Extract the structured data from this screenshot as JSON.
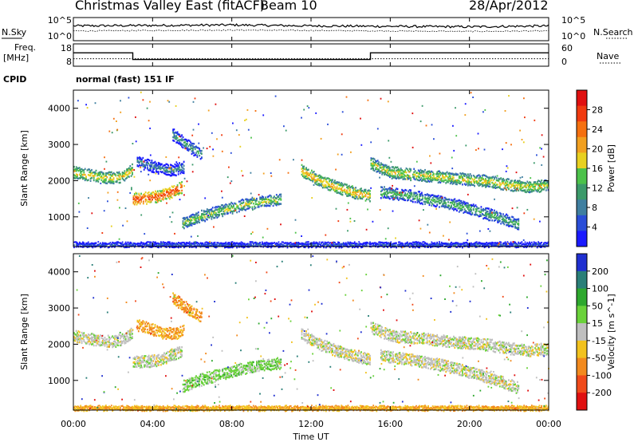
{
  "header": {
    "title": "Christmas Valley East (fitACF)",
    "beam": "Beam 10",
    "date": "28/Apr/2012"
  },
  "noise_panel": {
    "left_label": "N.Sky",
    "right_label": "N.Search",
    "left_ticks": [
      "10^5",
      "10^0"
    ],
    "right_ticks": [
      "10^5",
      "10^0"
    ]
  },
  "freq_panel": {
    "left_label_line1": "Freq.",
    "left_label_line2": "[MHz]",
    "right_label": "Nave",
    "left_ticks": [
      "18",
      "8"
    ],
    "right_ticks": [
      "60",
      "0"
    ],
    "freq_mhz": [
      {
        "t_start": 0,
        "t_end": 3,
        "value": 14
      },
      {
        "t_start": 3,
        "t_end": 15,
        "value": 11
      },
      {
        "t_start": 15,
        "t_end": 24,
        "value": 14
      }
    ]
  },
  "cpid_panel": {
    "label": "CPID",
    "mode": "normal (fast) 151 IF"
  },
  "power_panel": {
    "ylabel": "Slant Range [km]",
    "y_ticks": [
      "1000",
      "2000",
      "3000",
      "4000"
    ],
    "colorbar_label": "Power [dB]",
    "colorbar_ticks": [
      "4",
      "8",
      "12",
      "16",
      "20",
      "24",
      "28"
    ],
    "colors": [
      "#1a1aff",
      "#2a4ed8",
      "#3f7fa0",
      "#3c9a6a",
      "#4cc24a",
      "#e8d020",
      "#f2a020",
      "#f57010",
      "#f03a10",
      "#e01010"
    ]
  },
  "velocity_panel": {
    "ylabel": "Slant Range [km]",
    "y_ticks": [
      "1000",
      "2000",
      "3000",
      "4000"
    ],
    "colorbar_label": "Velocity [m s^-1]",
    "colorbar_ticks": [
      "200",
      "100",
      "50",
      "15",
      "-15",
      "-50",
      "-100",
      "-200"
    ],
    "colors": [
      "#1f2fd0",
      "#2a7f78",
      "#2ea82e",
      "#6ad23a",
      "#bfbfbf",
      "#f2c21e",
      "#f28a1e",
      "#f04a1a",
      "#e01010"
    ]
  },
  "x_axis": {
    "label": "Time UT",
    "ticks": [
      "00:00",
      "04:00",
      "08:00",
      "12:00",
      "16:00",
      "20:00",
      "00:00"
    ]
  },
  "chart_data": [
    {
      "type": "line",
      "title": "",
      "series": [
        {
          "name": "N.Sky",
          "x": [
            0,
            4,
            8,
            12,
            16,
            20,
            24
          ],
          "values": [
            3.2,
            3.3,
            3.4,
            3.2,
            3.1,
            3.0,
            3.2
          ]
        },
        {
          "name": "N.Search",
          "x": [
            0,
            4,
            8,
            12,
            16,
            20,
            24
          ],
          "values": [
            2.1,
            2.2,
            2.3,
            2.2,
            2.1,
            2.0,
            2.1
          ]
        }
      ],
      "xlim": [
        0,
        24
      ],
      "ylim": [
        0,
        5
      ]
    },
    {
      "type": "line",
      "title": "",
      "series": [
        {
          "name": "Freq. [MHz]",
          "x": [
            0,
            3,
            3,
            15,
            15,
            24
          ],
          "values": [
            14,
            14,
            11,
            11,
            14,
            14
          ]
        }
      ],
      "xlim": [
        0,
        24
      ],
      "ylim": [
        8,
        18
      ]
    },
    {
      "type": "heatmap",
      "title": "",
      "xlabel": "Time UT",
      "ylabel": "Slant Range [km]",
      "xlim": [
        0,
        24
      ],
      "ylim": [
        180,
        4500
      ],
      "value_label": "Power [dB]",
      "value_range": [
        0,
        30
      ],
      "bands": [
        {
          "t": [
            0.0,
            0.5,
            1.0,
            1.5,
            2.0,
            2.5,
            3.0
          ],
          "r": [
            2250,
            2200,
            2150,
            2100,
            2100,
            2150,
            2350
          ],
          "val": 19
        },
        {
          "t": [
            3.0,
            3.5,
            4.0,
            4.5,
            5.0,
            5.5
          ],
          "r": [
            1520,
            1540,
            1560,
            1620,
            1720,
            1850
          ],
          "val": 26
        },
        {
          "t": [
            3.2,
            3.8,
            4.4,
            5.0,
            5.6
          ],
          "r": [
            2550,
            2450,
            2350,
            2300,
            2400
          ],
          "val": 10
        },
        {
          "t": [
            5.0,
            5.5,
            6.0,
            6.5
          ],
          "r": [
            3300,
            3100,
            2900,
            2750
          ],
          "val": 12
        },
        {
          "t": [
            5.5,
            6.5,
            7.5,
            8.5,
            9.5,
            10.5
          ],
          "r": [
            850,
            1050,
            1200,
            1350,
            1450,
            1500
          ],
          "val": 16
        },
        {
          "t": [
            11.5,
            12.5,
            13.5,
            14.5,
            15.0
          ],
          "r": [
            2300,
            2000,
            1800,
            1650,
            1600
          ],
          "val": 20
        },
        {
          "t": [
            15.0,
            16.0,
            17.0,
            18.0,
            19.0,
            20.0,
            21.0,
            22.0,
            23.0,
            24.0
          ],
          "r": [
            2500,
            2250,
            2200,
            2150,
            2100,
            2050,
            2000,
            1900,
            1850,
            1900
          ],
          "val": 18
        },
        {
          "t": [
            15.5,
            17.0,
            18.5,
            20.0,
            21.5,
            22.5
          ],
          "r": [
            1700,
            1600,
            1450,
            1250,
            1000,
            800
          ],
          "val": 14
        },
        {
          "t": [
            0.0,
            6.0,
            12.0,
            18.0,
            24.0
          ],
          "r": [
            250,
            250,
            250,
            250,
            250
          ],
          "val": 8
        }
      ]
    },
    {
      "type": "heatmap",
      "title": "",
      "xlabel": "Time UT",
      "ylabel": "Slant Range [km]",
      "xlim": [
        0,
        24
      ],
      "ylim": [
        180,
        4500
      ],
      "value_label": "Velocity [m s^-1]",
      "value_range": [
        -200,
        200
      ],
      "bands": [
        {
          "t": [
            0.0,
            0.5,
            1.0,
            1.5,
            2.0,
            2.5,
            3.0
          ],
          "r": [
            2250,
            2200,
            2150,
            2100,
            2100,
            2150,
            2350
          ],
          "val": 0
        },
        {
          "t": [
            3.0,
            3.5,
            4.0,
            4.5,
            5.0,
            5.5
          ],
          "r": [
            1520,
            1540,
            1560,
            1620,
            1720,
            1850
          ],
          "val": 0
        },
        {
          "t": [
            3.2,
            3.8,
            4.4,
            5.0,
            5.6
          ],
          "r": [
            2550,
            2450,
            2350,
            2300,
            2400
          ],
          "val": -70
        },
        {
          "t": [
            5.0,
            5.5,
            6.0,
            6.5
          ],
          "r": [
            3300,
            3100,
            2900,
            2750
          ],
          "val": -80
        },
        {
          "t": [
            5.5,
            6.5,
            7.5,
            8.5,
            9.5,
            10.5
          ],
          "r": [
            850,
            1050,
            1200,
            1350,
            1450,
            1500
          ],
          "val": 40
        },
        {
          "t": [
            11.5,
            12.5,
            13.5,
            14.5,
            15.0
          ],
          "r": [
            2300,
            2000,
            1800,
            1650,
            1600
          ],
          "val": 0
        },
        {
          "t": [
            15.0,
            16.0,
            17.0,
            18.0,
            19.0,
            20.0,
            21.0,
            22.0,
            23.0,
            24.0
          ],
          "r": [
            2500,
            2250,
            2200,
            2150,
            2100,
            2050,
            2000,
            1900,
            1850,
            1900
          ],
          "val": 0
        },
        {
          "t": [
            15.5,
            17.0,
            18.5,
            20.0,
            21.5,
            22.5
          ],
          "r": [
            1700,
            1600,
            1450,
            1250,
            1000,
            800
          ],
          "val": 0
        },
        {
          "t": [
            0.0,
            6.0,
            12.0,
            18.0,
            24.0
          ],
          "r": [
            250,
            250,
            250,
            250,
            250
          ],
          "val": -60
        }
      ]
    }
  ]
}
